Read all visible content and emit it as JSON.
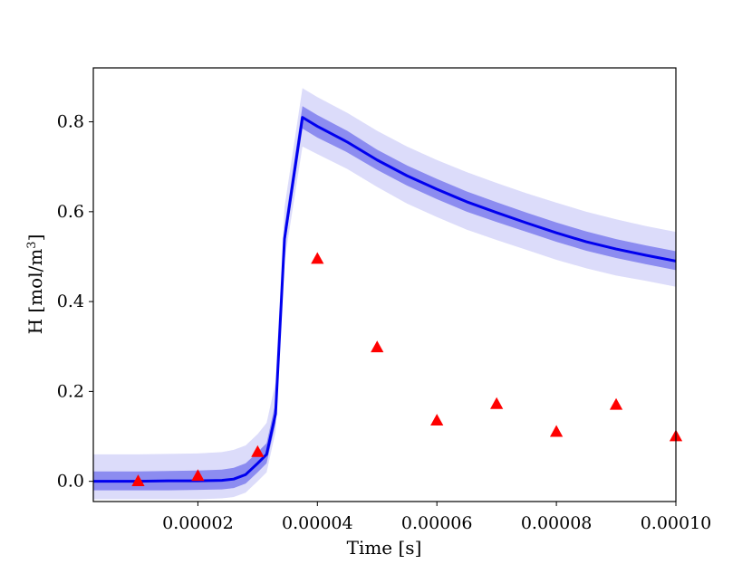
{
  "chart_data": {
    "type": "line",
    "title": "",
    "xlabel": "Time [s]",
    "ylabel": "H [mol/m³]",
    "ylabel_parts": {
      "main": "H [mol/m",
      "sup": "3",
      "close": "]"
    },
    "xlim": [
      2.5e-06,
      0.0001
    ],
    "ylim": [
      -0.045,
      0.92
    ],
    "x_ticks": [
      2e-05,
      4e-05,
      6e-05,
      8e-05,
      0.0001
    ],
    "x_tick_labels": [
      "0.00002",
      "0.00004",
      "0.00006",
      "0.00008",
      "0.00010"
    ],
    "y_ticks": [
      0.0,
      0.2,
      0.4,
      0.6,
      0.8
    ],
    "y_tick_labels": [
      "0.0",
      "0.2",
      "0.4",
      "0.6",
      "0.8"
    ],
    "grid": false,
    "series": [
      {
        "kind": "line_with_bands",
        "color": "#0000ee",
        "inner_band_color": "#8c8cf0",
        "outer_band_color": "#dcdcfa",
        "x": [
          2.5e-06,
          1e-05,
          1.5e-05,
          2e-05,
          2.4e-05,
          2.6e-05,
          2.8e-05,
          3e-05,
          3.15e-05,
          3.3e-05,
          3.45e-05,
          3.75e-05,
          4e-05,
          4.5e-05,
          5e-05,
          5.5e-05,
          6e-05,
          6.5e-05,
          7e-05,
          7.5e-05,
          8e-05,
          8.5e-05,
          9e-05,
          9.5e-05,
          0.0001
        ],
        "y": [
          0.0,
          0.0,
          0.001,
          0.001,
          0.002,
          0.005,
          0.015,
          0.04,
          0.06,
          0.15,
          0.54,
          0.81,
          0.79,
          0.755,
          0.715,
          0.68,
          0.65,
          0.622,
          0.598,
          0.575,
          0.553,
          0.533,
          0.517,
          0.503,
          0.49
        ],
        "inner_lo": [
          -0.02,
          -0.02,
          -0.02,
          -0.019,
          -0.018,
          -0.015,
          -0.005,
          0.02,
          0.04,
          0.13,
          0.52,
          0.785,
          0.765,
          0.732,
          0.693,
          0.658,
          0.628,
          0.6,
          0.577,
          0.555,
          0.533,
          0.513,
          0.497,
          0.483,
          0.47
        ],
        "inner_hi": [
          0.022,
          0.022,
          0.023,
          0.024,
          0.026,
          0.03,
          0.04,
          0.065,
          0.085,
          0.175,
          0.565,
          0.835,
          0.815,
          0.78,
          0.738,
          0.703,
          0.673,
          0.645,
          0.621,
          0.598,
          0.576,
          0.556,
          0.539,
          0.525,
          0.512
        ],
        "outer_lo": [
          -0.04,
          -0.04,
          -0.04,
          -0.04,
          -0.038,
          -0.035,
          -0.025,
          0.0,
          0.02,
          0.11,
          0.49,
          0.745,
          0.728,
          0.695,
          0.655,
          0.618,
          0.588,
          0.56,
          0.537,
          0.515,
          0.493,
          0.474,
          0.458,
          0.446,
          0.433
        ],
        "outer_hi": [
          0.06,
          0.06,
          0.061,
          0.062,
          0.065,
          0.07,
          0.08,
          0.105,
          0.13,
          0.22,
          0.61,
          0.875,
          0.855,
          0.82,
          0.78,
          0.745,
          0.715,
          0.688,
          0.664,
          0.641,
          0.62,
          0.6,
          0.583,
          0.568,
          0.555
        ]
      },
      {
        "kind": "scatter",
        "marker": "triangle",
        "color": "#ff0000",
        "x": [
          1e-05,
          2e-05,
          3e-05,
          4e-05,
          5e-05,
          6e-05,
          7e-05,
          8e-05,
          9e-05,
          0.0001
        ],
        "y": [
          0.0,
          0.012,
          0.065,
          0.495,
          0.298,
          0.135,
          0.172,
          0.11,
          0.17,
          0.1
        ]
      }
    ]
  }
}
